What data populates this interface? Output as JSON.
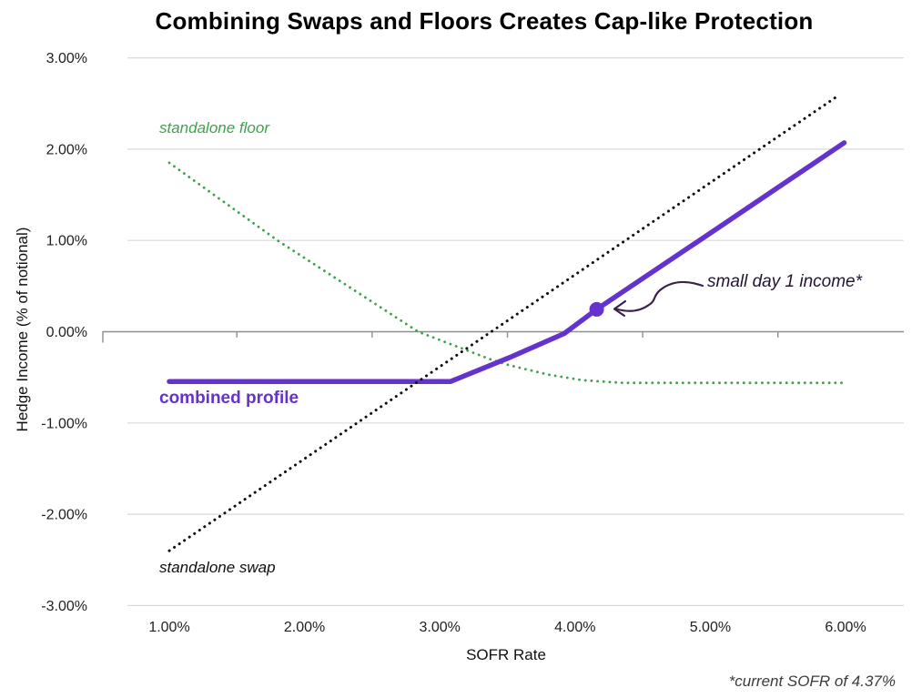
{
  "chart_data": {
    "type": "line",
    "title": "Combining Swaps and Floors Creates Cap-like Protection",
    "xlabel": "SOFR Rate",
    "ylabel": "Hedge Income (% of notional)",
    "x_tick_labels": [
      "1.00%",
      "2.00%",
      "3.00%",
      "4.00%",
      "5.00%",
      "6.00%"
    ],
    "x_tick_values": [
      1,
      2,
      3,
      4,
      5,
      6
    ],
    "x_minor_tick_values": [
      1.5,
      2.5,
      3.5,
      4.5,
      5.5
    ],
    "y_tick_labels": [
      "3.00%",
      "2.00%",
      "1.00%",
      "0.00%",
      "-1.00%",
      "-2.00%",
      "-3.00%"
    ],
    "y_tick_values": [
      3,
      2,
      1,
      0,
      -1,
      -2,
      -3
    ],
    "xlim": [
      0.69,
      6.43
    ],
    "ylim": [
      -3.02,
      3.02
    ],
    "grid": "horizontal-only",
    "legend_position": "inline-labels",
    "series": [
      {
        "name": "standalone floor",
        "color": "#3fa24a",
        "line_style": "dotted",
        "stroke_width": 2.8,
        "points": [
          [
            1,
            1.85
          ],
          [
            1.8,
            1.0
          ],
          [
            2.84,
            0
          ],
          [
            3.37,
            -0.3
          ],
          [
            3.52,
            -0.37
          ],
          [
            3.8,
            -0.47
          ],
          [
            4.05,
            -0.53
          ],
          [
            4.35,
            -0.56
          ],
          [
            6,
            -0.56
          ]
        ]
      },
      {
        "name": "combined profile",
        "color": "#6432cd",
        "line_style": "solid",
        "stroke_width": 5.5,
        "points": [
          [
            1,
            -0.545
          ],
          [
            3.08,
            -0.545
          ],
          [
            3.52,
            -0.28
          ],
          [
            3.92,
            -0.02
          ],
          [
            4.16,
            0.245
          ],
          [
            5.06,
            1.14
          ],
          [
            5.99,
            2.07
          ]
        ]
      },
      {
        "name": "standalone swap",
        "color": "#0f0f0f",
        "line_style": "dotted",
        "stroke_width": 3,
        "points": [
          [
            1,
            -2.4
          ],
          [
            5.95,
            2.59
          ]
        ]
      }
    ],
    "marker": {
      "x": 4.16,
      "y": 0.245,
      "color": "#6432cd",
      "radius": 8
    },
    "annotation": {
      "text": "small day 1 income*",
      "color": "#241432",
      "arrow_color": "#3a2250"
    },
    "footnote": "*current SOFR of 4.37%",
    "axis_colors": {
      "zero_axis": "#8f8f8f",
      "gridline": "#dadada"
    }
  }
}
